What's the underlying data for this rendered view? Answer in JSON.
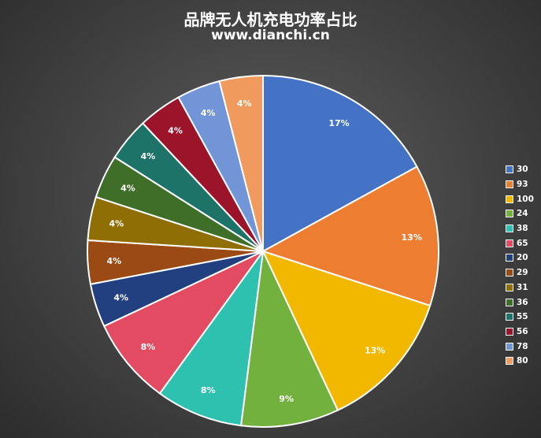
{
  "chart_data": {
    "type": "pie",
    "title": "品牌无人机充电功率占比",
    "subtitle": "www.dianchi.cn",
    "legend_position": "right",
    "categories": [
      "30",
      "93",
      "100",
      "24",
      "38",
      "65",
      "20",
      "29",
      "31",
      "36",
      "55",
      "56",
      "78",
      "80"
    ],
    "values": [
      17,
      13,
      13,
      9,
      8,
      8,
      4,
      4,
      4,
      4,
      4,
      4,
      4,
      4
    ],
    "labels": [
      "17%",
      "13%",
      "13%",
      "9%",
      "8%",
      "8%",
      "4%",
      "4%",
      "4%",
      "4%",
      "4%",
      "4%",
      "4%",
      "4%"
    ],
    "colors": [
      "#4472C4",
      "#ED7D31",
      "#F2B800",
      "#72B13E",
      "#2EC1B0",
      "#E24B61",
      "#22407F",
      "#9A4A12",
      "#8F6E05",
      "#3F6E28",
      "#1E7369",
      "#9C1429",
      "#7295D8",
      "#F09B5D"
    ],
    "slice_border_color": "#ffffff"
  }
}
